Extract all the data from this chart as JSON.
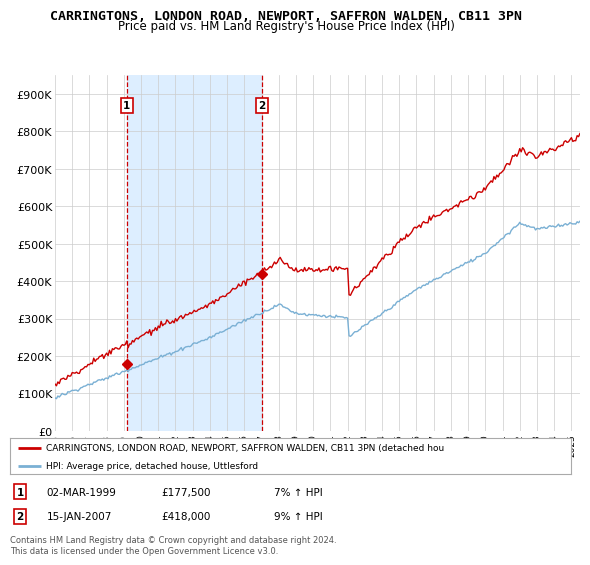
{
  "title": "CARRINGTONS, LONDON ROAD, NEWPORT, SAFFRON WALDEN, CB11 3PN",
  "subtitle": "Price paid vs. HM Land Registry's House Price Index (HPI)",
  "ylabel_ticks": [
    "£0",
    "£100K",
    "£200K",
    "£300K",
    "£400K",
    "£500K",
    "£600K",
    "£700K",
    "£800K",
    "£900K"
  ],
  "ytick_values": [
    0,
    100000,
    200000,
    300000,
    400000,
    500000,
    600000,
    700000,
    800000,
    900000
  ],
  "ylim": [
    0,
    950000
  ],
  "xmin_year": 1995.0,
  "xmax_year": 2025.5,
  "xtick_years": [
    1995,
    1996,
    1997,
    1998,
    1999,
    2000,
    2001,
    2002,
    2003,
    2004,
    2005,
    2006,
    2007,
    2008,
    2009,
    2010,
    2011,
    2012,
    2013,
    2014,
    2015,
    2016,
    2017,
    2018,
    2019,
    2020,
    2021,
    2022,
    2023,
    2024,
    2025
  ],
  "sale1_x": 1999.17,
  "sale1_y": 177500,
  "sale1_date": "02-MAR-1999",
  "sale1_price": "£177,500",
  "sale1_hpi": "7% ↑ HPI",
  "sale2_x": 2007.04,
  "sale2_y": 418000,
  "sale2_date": "15-JAN-2007",
  "sale2_price": "£418,000",
  "sale2_hpi": "9% ↑ HPI",
  "line_color_red": "#cc0000",
  "line_color_blue": "#7ab0d4",
  "fill_color": "#ddeeff",
  "vline_color": "#cc0000",
  "bg_color": "#ffffff",
  "grid_color": "#cccccc",
  "legend_label_red": "CARRINGTONS, LONDON ROAD, NEWPORT, SAFFRON WALDEN, CB11 3PN (detached hou",
  "legend_label_blue": "HPI: Average price, detached house, Uttlesford",
  "footer_text": "Contains HM Land Registry data © Crown copyright and database right 2024.\nThis data is licensed under the Open Government Licence v3.0.",
  "title_fontsize": 9.5,
  "subtitle_fontsize": 8.5
}
